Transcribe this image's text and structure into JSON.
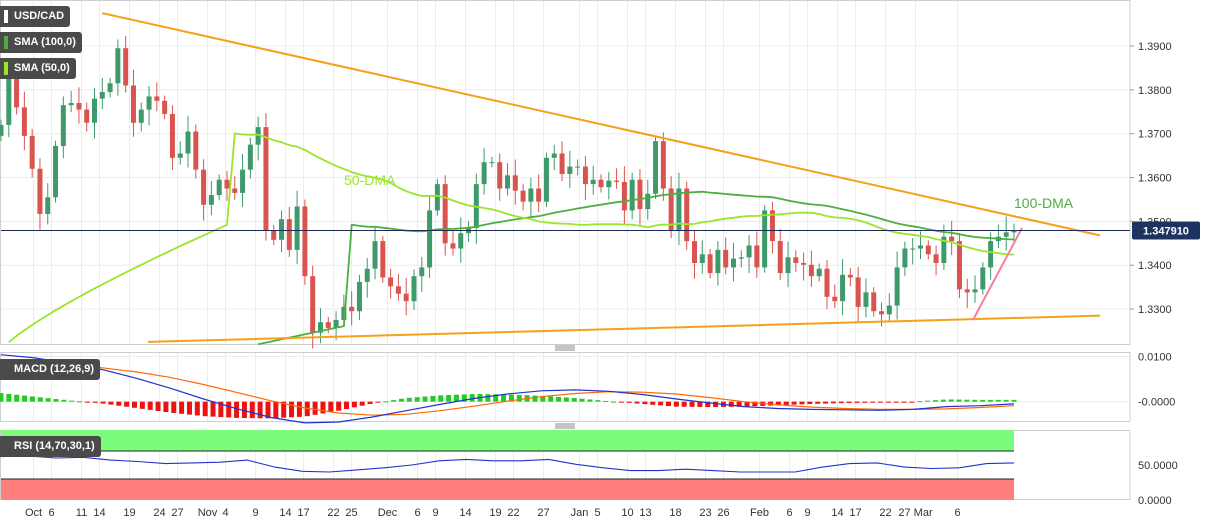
{
  "symbol_label": "USD/CAD",
  "price_tag": "1.347910",
  "legends": {
    "sma100": "SMA (100,0)",
    "sma50": "SMA (50,0)",
    "macd": "MACD (12,26,9)",
    "rsi": "RSI (14,70,30,1)"
  },
  "annotations": {
    "dma50": "50-DMA",
    "dma100": "100-DMA"
  },
  "colors": {
    "up": "#3e9a6b",
    "down": "#d9534f",
    "sma50": "#9be52a",
    "sma100": "#4caf3f",
    "trend": "#f5a01a",
    "support_pink": "#f47fa0",
    "macd_line": "#2233cc",
    "signal_line": "#ff6a00",
    "hist_pos": "#22cc22",
    "hist_neg": "#ee1111",
    "rsi_line": "#2233cc",
    "rsi_overbought": "#7cfc7c",
    "rsi_oversold": "#ff7f7f"
  },
  "chart_data": [
    {
      "type": "candlestick",
      "title": "USD/CAD",
      "ylim": [
        1.3218,
        1.4005
      ],
      "yticks": [
        "1.3900",
        "1.3800",
        "1.3700",
        "1.3600",
        "1.3500",
        "1.3400",
        "1.3300"
      ],
      "xticks": [
        "Oct",
        "6",
        "11",
        "14",
        "19",
        "24",
        "27",
        "Nov",
        "4",
        "9",
        "14",
        "17",
        "22",
        "25",
        "Dec",
        "6",
        "9",
        "14",
        "19",
        "22",
        "27",
        "Jan",
        "5",
        "10",
        "13",
        "18",
        "23",
        "26",
        "Feb",
        "6",
        "9",
        "14",
        "17",
        "22",
        "27 Mar",
        "6"
      ],
      "last_price": 1.34791,
      "closes": [
        1.372,
        1.3835,
        1.376,
        1.3695,
        1.362,
        1.3517,
        1.3555,
        1.3672,
        1.3765,
        1.377,
        1.3755,
        1.3725,
        1.378,
        1.3795,
        1.3815,
        1.3895,
        1.381,
        1.3725,
        1.3755,
        1.3785,
        1.3775,
        1.3745,
        1.3645,
        1.3655,
        1.3705,
        1.3618,
        1.3538,
        1.356,
        1.3595,
        1.3575,
        1.3565,
        1.3618,
        1.3675,
        1.3715,
        1.348,
        1.3458,
        1.3505,
        1.3435,
        1.3534,
        1.3375,
        1.3246,
        1.327,
        1.3257,
        1.3275,
        1.3305,
        1.3295,
        1.3362,
        1.3392,
        1.3455,
        1.3372,
        1.3352,
        1.3335,
        1.3318,
        1.3375,
        1.3395,
        1.3525,
        1.3585,
        1.345,
        1.3438,
        1.3473,
        1.3485,
        1.3585,
        1.3635,
        1.3635,
        1.3575,
        1.3605,
        1.357,
        1.3545,
        1.3575,
        1.3545,
        1.3645,
        1.3655,
        1.3608,
        1.3625,
        1.3625,
        1.3585,
        1.3595,
        1.3578,
        1.3593,
        1.359,
        1.3525,
        1.3595,
        1.3528,
        1.3563,
        1.3683,
        1.3575,
        1.3478,
        1.3575,
        1.3455,
        1.3405,
        1.3425,
        1.3382,
        1.3435,
        1.3395,
        1.3415,
        1.3418,
        1.3445,
        1.3395,
        1.3525,
        1.3455,
        1.3382,
        1.3418,
        1.3405,
        1.3401,
        1.3375,
        1.3392,
        1.3328,
        1.3318,
        1.3378,
        1.3372,
        1.3305,
        1.3338,
        1.3295,
        1.3288,
        1.3308,
        1.3395,
        1.3438,
        1.3438,
        1.3445,
        1.3425,
        1.3405,
        1.3465,
        1.3455,
        1.3345,
        1.3338,
        1.3345,
        1.3395,
        1.3455,
        1.3465,
        1.3475,
        1.34791
      ]
    },
    {
      "type": "macd",
      "title": "MACD (12,26,9)",
      "ylim": [
        -0.0045,
        0.011
      ],
      "yticks": [
        "0.0100",
        "-0.0000"
      ],
      "macd": [
        0.0104,
        0.0097,
        0.0085,
        0.0071,
        0.0052,
        0.003,
        0.0006,
        -0.0016,
        -0.0035,
        -0.0047,
        -0.0045,
        -0.0034,
        -0.002,
        -0.0006,
        0.0007,
        0.0017,
        0.0024,
        0.0026,
        0.0023,
        0.0016,
        0.0006,
        -0.0003,
        -0.0011,
        -0.0015,
        -0.0017,
        -0.0018,
        -0.0019,
        -0.0017,
        -0.0011,
        -0.0009,
        -0.0005
      ],
      "signal": [
        0.0085,
        0.0086,
        0.0082,
        0.0075,
        0.0066,
        0.0054,
        0.0038,
        0.002,
        0.0002,
        -0.0014,
        -0.0025,
        -0.003,
        -0.0028,
        -0.002,
        -0.001,
        0.0001,
        0.0011,
        0.0018,
        0.0022,
        0.0021,
        0.0017,
        0.0009,
        0.0,
        -0.0007,
        -0.0012,
        -0.0015,
        -0.0017,
        -0.0017,
        -0.0016,
        -0.0013,
        -0.0009
      ],
      "histogram": [
        0.0019,
        0.0011,
        0.0003,
        -0.0004,
        -0.0014,
        -0.0024,
        -0.0032,
        -0.0036,
        -0.0037,
        -0.0033,
        -0.002,
        -0.0004,
        0.0008,
        0.0014,
        0.0017,
        0.0016,
        0.0013,
        0.0008,
        0.0001,
        -0.0005,
        -0.0011,
        -0.0012,
        -0.0011,
        -0.0008,
        -0.0005,
        -0.0003,
        -0.0002,
        0.0,
        0.0005,
        0.0004,
        0.0004
      ]
    },
    {
      "type": "line",
      "title": "RSI (14,70,30,1)",
      "ylim": [
        0,
        100
      ],
      "yticks": [
        "50.0000",
        "0.0000"
      ],
      "overbought": 70,
      "oversold": 30,
      "values": [
        62,
        63,
        60,
        61,
        57,
        55,
        52,
        53,
        54,
        57,
        47,
        41,
        40,
        43,
        46,
        50,
        56,
        58,
        56,
        56,
        58,
        51,
        46,
        42,
        42,
        44,
        42,
        40,
        40,
        40,
        47,
        52,
        53,
        47,
        45,
        46,
        52,
        53
      ]
    }
  ]
}
